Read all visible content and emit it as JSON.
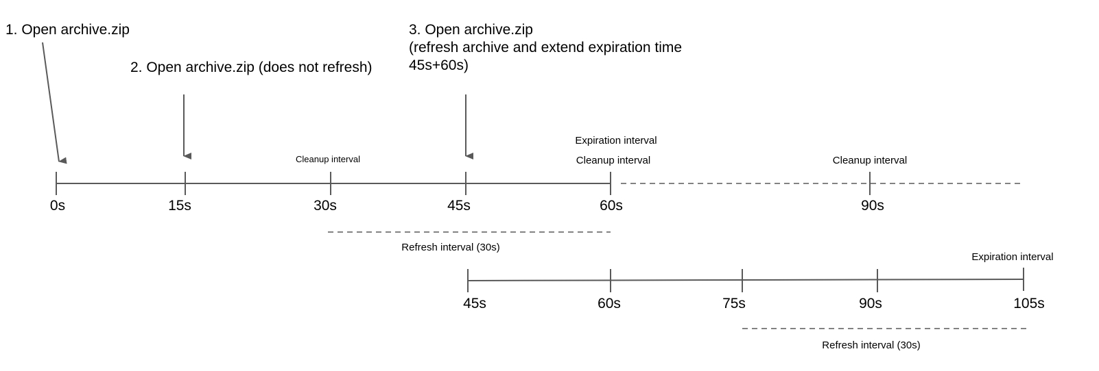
{
  "steps": {
    "step1": "1. Open archive.zip",
    "step2": "2. Open archive.zip (does not refresh)",
    "step3_line1": "3. Open archive.zip",
    "step3_line2": "(refresh archive and extend expiration time",
    "step3_line3": "45s+60s)"
  },
  "timeline1": {
    "ticks": [
      "0s",
      "15s",
      "30s",
      "45s",
      "60s",
      "90s"
    ],
    "labels": {
      "cleanup_30": "Cleanup interval",
      "expiration_60": "Expiration interval",
      "cleanup_60": "Cleanup interval",
      "cleanup_90": "Cleanup interval"
    },
    "refresh": "Refresh interval (30s)"
  },
  "timeline2": {
    "ticks": [
      "45s",
      "60s",
      "75s",
      "90s",
      "105s"
    ],
    "labels": {
      "expiration_105": "Expiration interval"
    },
    "refresh": "Refresh interval (30s)"
  },
  "colors": {
    "line": "#595959",
    "text": "#000000"
  }
}
